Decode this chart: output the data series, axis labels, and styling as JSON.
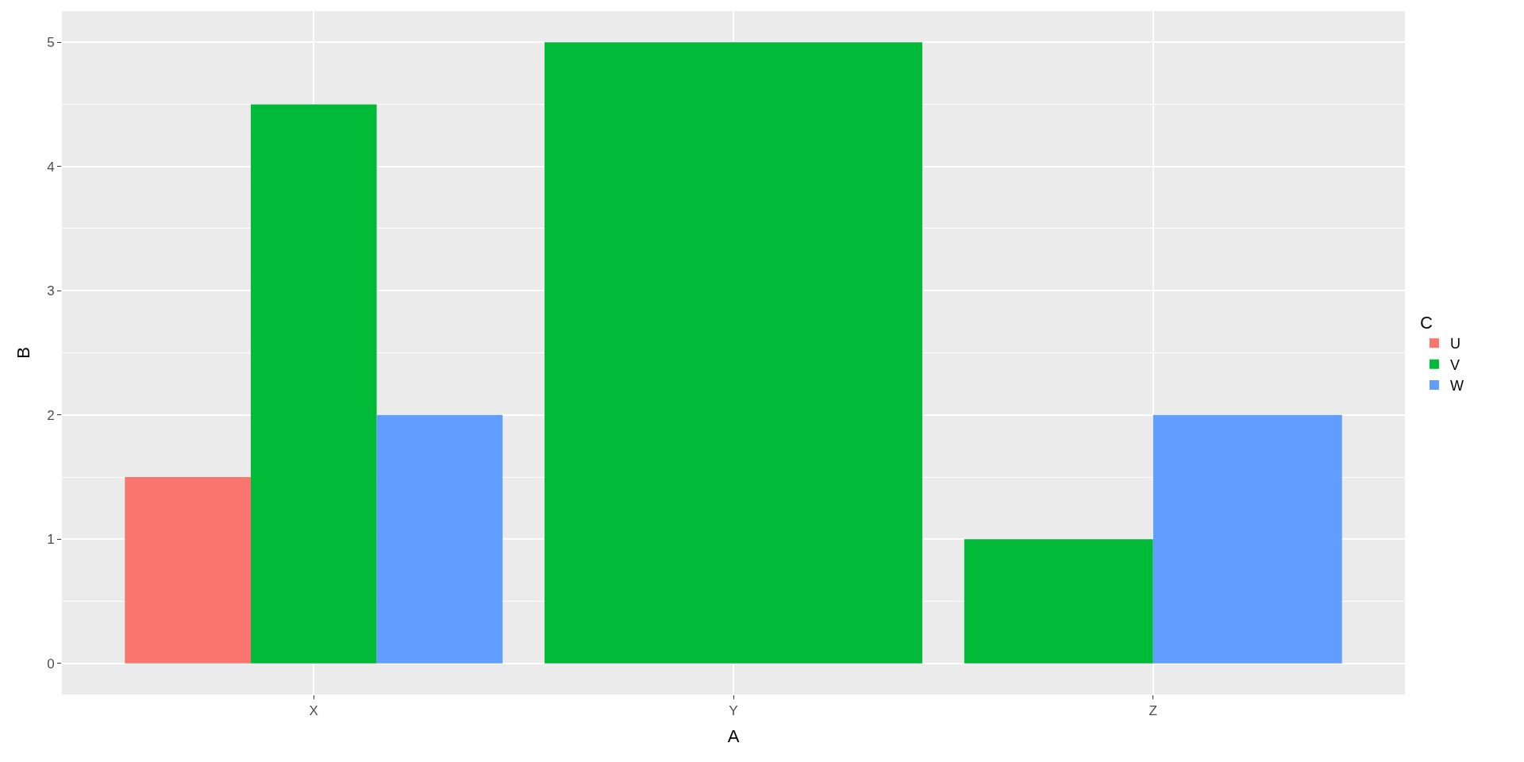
{
  "chart_data": {
    "type": "bar",
    "xlabel": "A",
    "ylabel": "B",
    "legend_title": "C",
    "categories": [
      "X",
      "Y",
      "Z"
    ],
    "series": [
      {
        "name": "U",
        "color": "#f8766d",
        "values": [
          1.5,
          null,
          null
        ]
      },
      {
        "name": "V",
        "color": "#00ba38",
        "values": [
          4.5,
          5,
          1
        ]
      },
      {
        "name": "W",
        "color": "#619cff",
        "values": [
          2,
          null,
          2
        ]
      }
    ],
    "ylim": [
      -0.25,
      5.25
    ],
    "yticks": [
      0,
      1,
      2,
      3,
      4,
      5
    ],
    "grid": true,
    "legend": "right"
  }
}
